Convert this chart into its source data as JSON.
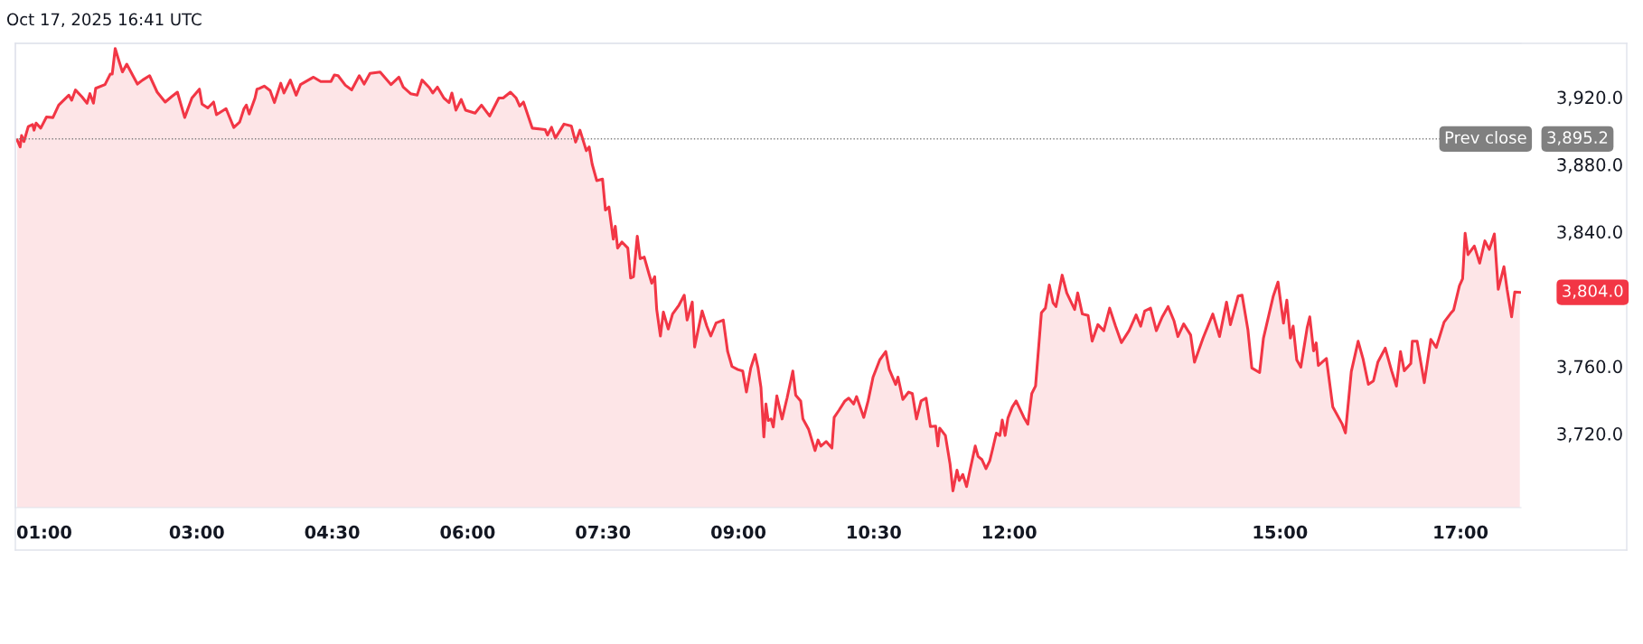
{
  "chart_data": {
    "type": "area",
    "title": "Oct 17, 2025 16:41 UTC",
    "x": [
      1.01,
      1.043,
      1.059,
      1.085,
      1.133,
      1.181,
      1.197,
      1.22,
      1.271,
      1.335,
      1.406,
      1.47,
      1.582,
      1.614,
      1.656,
      1.726,
      1.784,
      1.816,
      1.855,
      1.88,
      1.983,
      2.041,
      2.063,
      2.096,
      2.137,
      2.176,
      2.224,
      2.288,
      2.342,
      2.4,
      2.477,
      2.561,
      2.65,
      2.721,
      2.785,
      2.866,
      2.946,
      3.029,
      3.058,
      3.122,
      3.186,
      3.218,
      3.324,
      3.41,
      3.475,
      3.523,
      3.549,
      3.581,
      3.645,
      3.667,
      3.699,
      3.747,
      3.812,
      3.86,
      3.93,
      3.966,
      4.036,
      4.101,
      4.149,
      4.293,
      4.373,
      4.486,
      4.524,
      4.565,
      4.646,
      4.716,
      4.8,
      4.854,
      4.919,
      5.031,
      5.152,
      5.239,
      5.287,
      5.368,
      5.441,
      5.496,
      5.576,
      5.614,
      5.666,
      5.737,
      5.795,
      5.826,
      5.871,
      5.929,
      5.977,
      6.083,
      6.154,
      6.244,
      6.346,
      6.394,
      6.475,
      6.538,
      6.577,
      6.619,
      6.716,
      6.86,
      6.885,
      6.93,
      6.972,
      7.068,
      7.149,
      7.197,
      7.245,
      7.315,
      7.347,
      7.38,
      7.431,
      7.495,
      7.527,
      7.566,
      7.614,
      7.636,
      7.662,
      7.71,
      7.775,
      7.806,
      7.838,
      7.88,
      7.912,
      7.957,
      8.008,
      8.04,
      8.073,
      8.095,
      8.136,
      8.169,
      8.223,
      8.271,
      8.342,
      8.4,
      8.432,
      8.489,
      8.515,
      8.598,
      8.65,
      8.694,
      8.752,
      8.833,
      8.881,
      8.929,
      8.993,
      9.048,
      9.089,
      9.137,
      9.185,
      9.218,
      9.25,
      9.282,
      9.305,
      9.33,
      9.362,
      9.387,
      9.426,
      9.484,
      9.539,
      9.603,
      9.635,
      9.69,
      9.715,
      9.779,
      9.849,
      9.882,
      9.914,
      9.972,
      10.036,
      10.061,
      10.116,
      10.18,
      10.222,
      10.277,
      10.309,
      10.389,
      10.437,
      10.492,
      10.566,
      10.633,
      10.672,
      10.742,
      10.768,
      10.822,
      10.886,
      10.927,
      10.973,
      11.024,
      11.079,
      11.127,
      11.185,
      11.21,
      11.23,
      11.293,
      11.345,
      11.377,
      11.422,
      11.447,
      11.486,
      11.528,
      11.57,
      11.624,
      11.656,
      11.697,
      11.743,
      11.784,
      11.817,
      11.858,
      11.897,
      11.923,
      11.955,
      11.986,
      12.034,
      12.077,
      12.163,
      12.207,
      12.25,
      12.292,
      12.357,
      12.401,
      12.444,
      12.487,
      12.518,
      12.587,
      12.638,
      12.725,
      12.759,
      12.81,
      12.874,
      12.919,
      12.983,
      13.048,
      13.113,
      13.178,
      13.243,
      13.328,
      13.406,
      13.457,
      13.501,
      13.566,
      13.63,
      13.695,
      13.76,
      13.826,
      13.869,
      13.933,
      14.01,
      14.053,
      14.148,
      14.256,
      14.33,
      14.408,
      14.451,
      14.537,
      14.58,
      14.645,
      14.688,
      14.774,
      14.817,
      14.926,
      14.978,
      15.039,
      15.076,
      15.115,
      15.146,
      15.186,
      15.231,
      15.302,
      15.33,
      15.372,
      15.401,
      15.425,
      15.514,
      15.585,
      15.69,
      15.725,
      15.79,
      15.866,
      15.919,
      15.979,
      16.035,
      16.085,
      16.166,
      16.236,
      16.29,
      16.335,
      16.377,
      16.449,
      16.466,
      16.519,
      16.599,
      16.671,
      16.731,
      16.818,
      16.89,
      16.924,
      16.988,
      17.023,
      17.051,
      17.083,
      17.153,
      17.212,
      17.27,
      17.319,
      17.375,
      17.418,
      17.481,
      17.516,
      17.566,
      17.601,
      17.657
    ],
    "series": [
      {
        "color": "#f23645",
        "values": [
          3894.5,
          3890.4,
          3897.2,
          3893.6,
          3902.5,
          3903.7,
          3900.4,
          3904.6,
          3901.6,
          3908.2,
          3907.9,
          3915.3,
          3921.2,
          3918.2,
          3924.3,
          3920.3,
          3916.4,
          3922.1,
          3916.4,
          3925.3,
          3927.5,
          3933.7,
          3933.7,
          3948.9,
          3941.7,
          3935.0,
          3939.6,
          3933.2,
          3927.8,
          3930.2,
          3932.8,
          3923.0,
          3917.1,
          3920.3,
          3923.0,
          3907.9,
          3919.5,
          3924.8,
          3915.9,
          3913.6,
          3917.1,
          3909.6,
          3913.2,
          3902.0,
          3905.2,
          3913.2,
          3915.3,
          3910.0,
          3919.5,
          3924.8,
          3925.3,
          3926.6,
          3923.9,
          3916.8,
          3928.3,
          3922.5,
          3930.2,
          3921.2,
          3927.5,
          3931.9,
          3929.3,
          3929.3,
          3933.2,
          3932.8,
          3927.1,
          3924.3,
          3932.8,
          3927.8,
          3934.2,
          3935.0,
          3927.5,
          3931.9,
          3926.0,
          3922.1,
          3921.2,
          3930.2,
          3925.7,
          3922.5,
          3926.0,
          3919.5,
          3916.8,
          3922.5,
          3912.3,
          3918.6,
          3912.3,
          3910.5,
          3915.3,
          3908.8,
          3919.5,
          3919.5,
          3923.0,
          3919.5,
          3914.7,
          3917.1,
          3901.6,
          3900.7,
          3897.5,
          3902.1,
          3895.7,
          3904.0,
          3902.9,
          3893.3,
          3900.4,
          3888.2,
          3890.4,
          3880.2,
          3870.4,
          3871.3,
          3852.9,
          3854.7,
          3835.6,
          3843.3,
          3830.3,
          3833.9,
          3830.3,
          3812.5,
          3813.3,
          3837.4,
          3824.0,
          3824.9,
          3815.2,
          3809.4,
          3813.3,
          3793.8,
          3778.0,
          3792.3,
          3782.2,
          3791.1,
          3796.4,
          3802.3,
          3787.5,
          3798.2,
          3771.5,
          3792.9,
          3783.9,
          3778.0,
          3785.7,
          3787.5,
          3768.8,
          3759.9,
          3758.1,
          3757.2,
          3744.7,
          3759.0,
          3767.0,
          3759.0,
          3747.4,
          3718.0,
          3737.6,
          3727.8,
          3728.7,
          3723.9,
          3742.4,
          3728.7,
          3741.1,
          3757.2,
          3742.9,
          3739.4,
          3728.7,
          3722.4,
          3709.9,
          3716.2,
          3712.6,
          3715.3,
          3711.4,
          3729.6,
          3734.0,
          3739.4,
          3741.1,
          3737.6,
          3742.0,
          3729.6,
          3739.4,
          3753.6,
          3763.8,
          3768.8,
          3758.1,
          3749.2,
          3753.6,
          3740.3,
          3744.7,
          3743.8,
          3728.7,
          3739.4,
          3741.1,
          3724.2,
          3724.5,
          3712.6,
          3723.3,
          3718.9,
          3701.9,
          3685.9,
          3698.3,
          3692.1,
          3695.7,
          3688.5,
          3699.2,
          3712.6,
          3706.4,
          3704.6,
          3699.2,
          3703.7,
          3710.9,
          3720.3,
          3718.9,
          3728.1,
          3718.9,
          3729.2,
          3735.8,
          3739.4,
          3729.6,
          3725.6,
          3743.8,
          3748.3,
          3791.9,
          3794.6,
          3808.4,
          3797.7,
          3795.5,
          3814.2,
          3803.6,
          3793.8,
          3803.6,
          3791.1,
          3790.2,
          3775.0,
          3784.8,
          3781.2,
          3794.6,
          3783.9,
          3774.1,
          3781.2,
          3790.6,
          3783.9,
          3792.9,
          3794.6,
          3781.2,
          3789.3,
          3795.5,
          3787.0,
          3777.7,
          3785.2,
          3778.6,
          3762.5,
          3776.8,
          3791.1,
          3777.7,
          3798.2,
          3784.8,
          3801.8,
          3802.3,
          3781.6,
          3759.0,
          3756.3,
          3776.8,
          3801.8,
          3810.1,
          3785.7,
          3799.4,
          3776.8,
          3783.9,
          3763.8,
          3759.5,
          3783.2,
          3789.4,
          3769.2,
          3773.9,
          3760.5,
          3764.7,
          3735.9,
          3725.6,
          3720.4,
          3756.9,
          3774.9,
          3764.7,
          3749.3,
          3751.3,
          3762.6,
          3770.8,
          3757.4,
          3748.2,
          3768.8,
          3757.4,
          3761.6,
          3774.9,
          3774.9,
          3750.3,
          3776.0,
          3771.2,
          3786.3,
          3791.4,
          3793.5,
          3807.9,
          3812.0,
          3839.1,
          3826.4,
          3831.5,
          3821.3,
          3834.6,
          3829.5,
          3838.7,
          3805.8,
          3819.2,
          3805.8,
          3789.4,
          3804.2,
          3804.0
        ]
      }
    ],
    "xlim": [
      0.99,
      17.67
    ],
    "xticks": [
      {
        "value": 1.0,
        "label": "01:00"
      },
      {
        "value": 3.0,
        "label": "03:00"
      },
      {
        "value": 4.5,
        "label": "04:30"
      },
      {
        "value": 6.0,
        "label": "06:00"
      },
      {
        "value": 7.5,
        "label": "07:30"
      },
      {
        "value": 9.0,
        "label": "09:00"
      },
      {
        "value": 10.5,
        "label": "10:30"
      },
      {
        "value": 12.0,
        "label": "12:00"
      },
      {
        "value": 15,
        "label": "15:00"
      },
      {
        "value": 17,
        "label": "17:00"
      }
    ],
    "ylim": [
      3676,
      3952
    ],
    "yticks": [
      {
        "value": 3720,
        "label": "3,720.0"
      },
      {
        "value": 3760,
        "label": "3,760.0"
      },
      {
        "value": 3840,
        "label": "3,840.0"
      },
      {
        "value": 3880,
        "label": "3,880.0"
      },
      {
        "value": 3920,
        "label": "3,920.0"
      }
    ],
    "ref_lines": [
      {
        "axis": "y",
        "value": 3895.2,
        "label": "Prev close",
        "color": "#808080",
        "line_style": "dotted"
      }
    ],
    "annotations": [
      {
        "text": "3,804.0",
        "x": 17.657,
        "y": 3804.0
      },
      "3,895.2"
    ],
    "grid": false,
    "legend": false
  }
}
